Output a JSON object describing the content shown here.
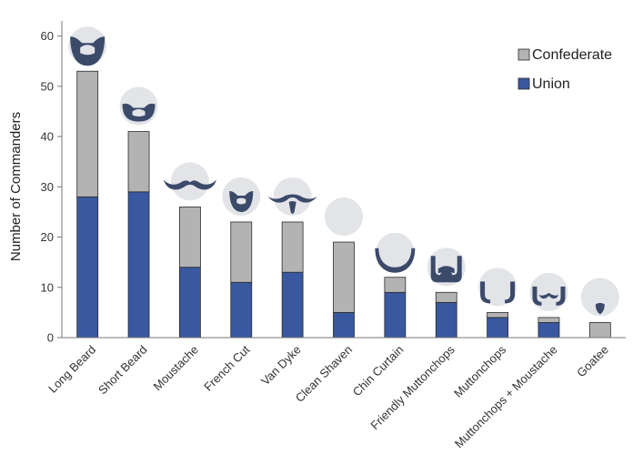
{
  "chart_data": {
    "type": "bar",
    "stacked": true,
    "title": "",
    "xlabel": "",
    "ylabel": "Number of Commanders",
    "ylim": [
      0,
      63
    ],
    "yticks": [
      0,
      10,
      20,
      30,
      40,
      50,
      60
    ],
    "grid": false,
    "legend_position": "top-right",
    "categories": [
      "Long Beard",
      "Short Beard",
      "Moustache",
      "French Cut",
      "Van Dyke",
      "Clean Shaven",
      "Chin Curtain",
      "Friendly Muttonchops",
      "Muttonchops",
      "Muttonchops + Moustache",
      "Goatee"
    ],
    "icons": [
      "long-beard-icon",
      "short-beard-icon",
      "moustache-icon",
      "french-cut-icon",
      "van-dyke-icon",
      "clean-shaven-icon",
      "chin-curtain-icon",
      "friendly-muttonchops-icon",
      "muttonchops-icon",
      "muttonchops-moustache-icon",
      "goatee-icon"
    ],
    "series": [
      {
        "name": "Union",
        "color": "#3a58a0",
        "values": [
          28,
          29,
          14,
          11,
          13,
          5,
          9,
          7,
          4,
          3,
          0
        ]
      },
      {
        "name": "Confederate",
        "color": "#b3b3b3",
        "values": [
          25,
          12,
          12,
          12,
          10,
          14,
          3,
          2,
          1,
          1,
          3
        ]
      }
    ],
    "legend": [
      {
        "label": "Confederate",
        "color": "#b3b3b3"
      },
      {
        "label": "Union",
        "color": "#3a58a0"
      }
    ],
    "icon_colors": {
      "circle": "#e2e4e8",
      "hair": "#3c4a6a"
    }
  }
}
